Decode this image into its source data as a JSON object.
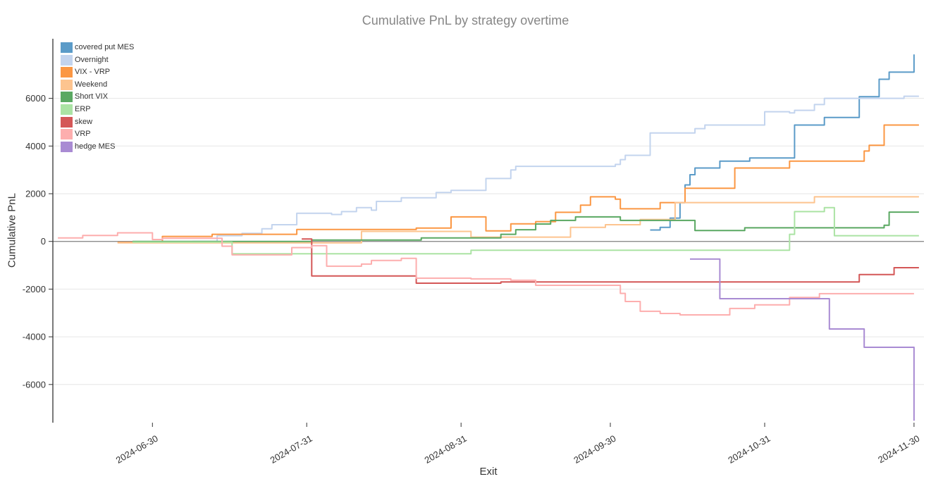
{
  "chart_data": {
    "type": "line",
    "title": "Cumulative PnL by strategy overtime",
    "xlabel": "Exit",
    "ylabel": "Cumulative PnL",
    "line_shape": "hv",
    "grid": true,
    "legend_position": "top-left",
    "x_ticks": [
      "2024-06-30",
      "2024-07-31",
      "2024-08-31",
      "2024-09-30",
      "2024-10-31",
      "2024-11-30"
    ],
    "y_ticks": [
      -6000,
      -4000,
      -2000,
      0,
      2000,
      4000,
      6000
    ],
    "xlim": [
      "2024-06-10",
      "2024-12-02"
    ],
    "ylim": [
      -7600,
      8500
    ],
    "axis_color": "#333333",
    "grid_color": "#e6e6e6",
    "zero_line_color": "#8c8c8c",
    "title_color": "#868686",
    "series": [
      {
        "name": "covered put MES",
        "color": "#5b9bc8",
        "points": [
          [
            "2024-10-08",
            480
          ],
          [
            "2024-10-10",
            590
          ],
          [
            "2024-10-12",
            980
          ],
          [
            "2024-10-14",
            1630
          ],
          [
            "2024-10-15",
            2370
          ],
          [
            "2024-10-16",
            2800
          ],
          [
            "2024-10-17",
            3080
          ],
          [
            "2024-10-22",
            3370
          ],
          [
            "2024-10-28",
            3500
          ],
          [
            "2024-11-06",
            4880
          ],
          [
            "2024-11-12",
            5200
          ],
          [
            "2024-11-19",
            6070
          ],
          [
            "2024-11-23",
            6800
          ],
          [
            "2024-11-25",
            7100
          ],
          [
            "2024-11-30",
            7840
          ]
        ]
      },
      {
        "name": "Overnight",
        "color": "#c3d4ee",
        "points": [
          [
            "2024-07-08",
            0
          ],
          [
            "2024-07-13",
            240
          ],
          [
            "2024-07-18",
            340
          ],
          [
            "2024-07-22",
            530
          ],
          [
            "2024-07-24",
            700
          ],
          [
            "2024-07-29",
            1180
          ],
          [
            "2024-08-05",
            1130
          ],
          [
            "2024-08-07",
            1250
          ],
          [
            "2024-08-10",
            1420
          ],
          [
            "2024-08-13",
            1310
          ],
          [
            "2024-08-14",
            1680
          ],
          [
            "2024-08-19",
            1830
          ],
          [
            "2024-08-26",
            2050
          ],
          [
            "2024-08-29",
            2140
          ],
          [
            "2024-09-05",
            2640
          ],
          [
            "2024-09-10",
            3000
          ],
          [
            "2024-09-11",
            3150
          ],
          [
            "2024-10-01",
            3230
          ],
          [
            "2024-10-02",
            3430
          ],
          [
            "2024-10-03",
            3610
          ],
          [
            "2024-10-08",
            4550
          ],
          [
            "2024-10-17",
            4730
          ],
          [
            "2024-10-19",
            4880
          ],
          [
            "2024-10-31",
            5440
          ],
          [
            "2024-11-05",
            5390
          ],
          [
            "2024-11-06",
            5500
          ],
          [
            "2024-11-10",
            5740
          ],
          [
            "2024-11-12",
            6000
          ],
          [
            "2024-11-28",
            6090
          ],
          [
            "2024-12-01",
            6090
          ]
        ]
      },
      {
        "name": "VIX - VRP",
        "color": "#fb9743",
        "points": [
          [
            "2024-06-23",
            -40
          ],
          [
            "2024-07-02",
            210
          ],
          [
            "2024-07-12",
            300
          ],
          [
            "2024-07-29",
            500
          ],
          [
            "2024-08-22",
            560
          ],
          [
            "2024-08-29",
            1030
          ],
          [
            "2024-09-05",
            440
          ],
          [
            "2024-09-10",
            740
          ],
          [
            "2024-09-15",
            830
          ],
          [
            "2024-09-19",
            1220
          ],
          [
            "2024-09-24",
            1520
          ],
          [
            "2024-09-26",
            1870
          ],
          [
            "2024-10-01",
            1770
          ],
          [
            "2024-10-02",
            1370
          ],
          [
            "2024-10-10",
            1630
          ],
          [
            "2024-10-15",
            2230
          ],
          [
            "2024-10-25",
            3080
          ],
          [
            "2024-11-05",
            3370
          ],
          [
            "2024-11-20",
            3790
          ],
          [
            "2024-11-21",
            4030
          ],
          [
            "2024-11-24",
            4880
          ],
          [
            "2024-12-01",
            4880
          ]
        ]
      },
      {
        "name": "Weekend",
        "color": "#fdc48f",
        "points": [
          [
            "2024-06-23",
            -60
          ],
          [
            "2024-08-11",
            420
          ],
          [
            "2024-09-02",
            180
          ],
          [
            "2024-09-22",
            590
          ],
          [
            "2024-09-29",
            700
          ],
          [
            "2024-10-06",
            920
          ],
          [
            "2024-10-13",
            1630
          ],
          [
            "2024-11-10",
            1870
          ],
          [
            "2024-12-01",
            1870
          ]
        ]
      },
      {
        "name": "Short VIX",
        "color": "#5aa862",
        "points": [
          [
            "2024-06-26",
            0
          ],
          [
            "2024-08-01",
            60
          ],
          [
            "2024-08-23",
            150
          ],
          [
            "2024-09-08",
            300
          ],
          [
            "2024-09-11",
            490
          ],
          [
            "2024-09-15",
            730
          ],
          [
            "2024-09-18",
            880
          ],
          [
            "2024-09-23",
            1030
          ],
          [
            "2024-10-02",
            880
          ],
          [
            "2024-10-17",
            460
          ],
          [
            "2024-10-27",
            570
          ],
          [
            "2024-11-24",
            680
          ],
          [
            "2024-11-25",
            1230
          ],
          [
            "2024-12-01",
            1230
          ]
        ]
      },
      {
        "name": "ERP",
        "color": "#abe3a4",
        "points": [
          [
            "2024-06-26",
            -30
          ],
          [
            "2024-07-16",
            -520
          ],
          [
            "2024-09-02",
            -370
          ],
          [
            "2024-11-05",
            300
          ],
          [
            "2024-11-06",
            1250
          ],
          [
            "2024-11-12",
            1420
          ],
          [
            "2024-11-14",
            240
          ],
          [
            "2024-12-01",
            240
          ]
        ]
      },
      {
        "name": "skew",
        "color": "#d45757",
        "points": [
          [
            "2024-07-30",
            100
          ],
          [
            "2024-08-01",
            -1450
          ],
          [
            "2024-08-22",
            -1750
          ],
          [
            "2024-09-08",
            -1700
          ],
          [
            "2024-11-19",
            -1390
          ],
          [
            "2024-11-26",
            -1100
          ],
          [
            "2024-12-01",
            -1100
          ]
        ]
      },
      {
        "name": "VRP",
        "color": "#fdaeae",
        "points": [
          [
            "2024-06-11",
            150
          ],
          [
            "2024-06-16",
            250
          ],
          [
            "2024-06-23",
            360
          ],
          [
            "2024-06-30",
            80
          ],
          [
            "2024-07-02",
            130
          ],
          [
            "2024-07-14",
            -200
          ],
          [
            "2024-07-16",
            -560
          ],
          [
            "2024-07-28",
            -260
          ],
          [
            "2024-08-01",
            -180
          ],
          [
            "2024-08-04",
            -1040
          ],
          [
            "2024-08-11",
            -950
          ],
          [
            "2024-08-13",
            -800
          ],
          [
            "2024-08-19",
            -710
          ],
          [
            "2024-08-22",
            -1540
          ],
          [
            "2024-09-02",
            -1570
          ],
          [
            "2024-09-10",
            -1630
          ],
          [
            "2024-09-15",
            -1840
          ],
          [
            "2024-10-02",
            -2180
          ],
          [
            "2024-10-03",
            -2520
          ],
          [
            "2024-10-06",
            -2930
          ],
          [
            "2024-10-10",
            -3020
          ],
          [
            "2024-10-14",
            -3080
          ],
          [
            "2024-10-24",
            -2810
          ],
          [
            "2024-10-29",
            -2660
          ],
          [
            "2024-11-05",
            -2350
          ],
          [
            "2024-11-11",
            -2190
          ],
          [
            "2024-11-30",
            -2190
          ]
        ]
      },
      {
        "name": "hedge MES",
        "color": "#a98bd3",
        "points": [
          [
            "2024-10-16",
            -740
          ],
          [
            "2024-10-22",
            -2400
          ],
          [
            "2024-11-13",
            -3670
          ],
          [
            "2024-11-20",
            -4440
          ],
          [
            "2024-11-29",
            -4440
          ],
          [
            "2024-11-30",
            -7520
          ]
        ]
      }
    ]
  }
}
